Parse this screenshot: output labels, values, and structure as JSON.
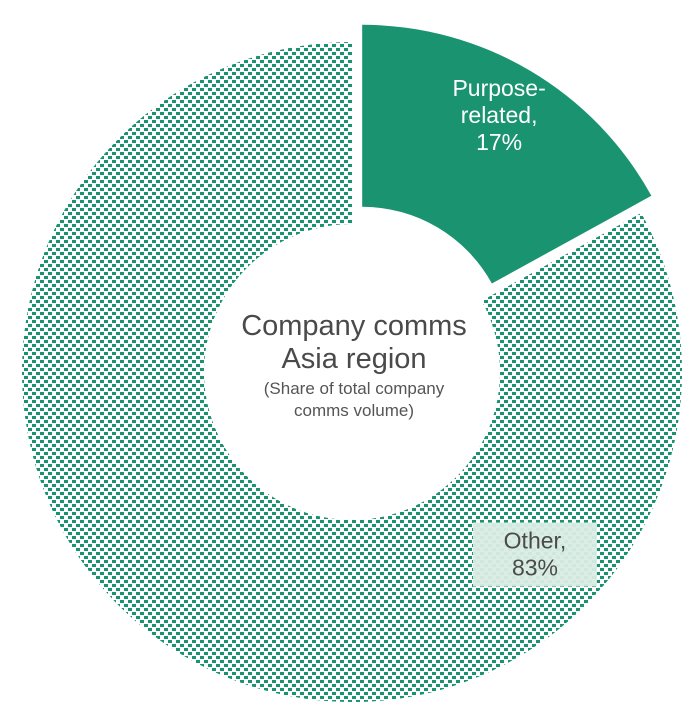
{
  "center": {
    "title_line1": "Company comms",
    "title_line2": "Asia region",
    "subtitle_line1": "(Share of total company",
    "subtitle_line2": "comms volume)"
  },
  "colors": {
    "accent": "#1a9470",
    "pattern_bg": "#ffffff",
    "label_light": "#ffffff",
    "label_dark": "#4a4a4a",
    "label_box": "#d9ece4"
  },
  "chart_data": {
    "type": "pie",
    "variant": "donut",
    "title": "",
    "slices": [
      {
        "label_line1": "Purpose-",
        "label_line2": "related,",
        "value_text": "17%",
        "value": 17,
        "fill": "solid",
        "exploded": true
      },
      {
        "label_line1": "Other,",
        "label_line2": "",
        "value_text": "83%",
        "value": 83,
        "fill": "pattern",
        "exploded": false
      }
    ]
  }
}
